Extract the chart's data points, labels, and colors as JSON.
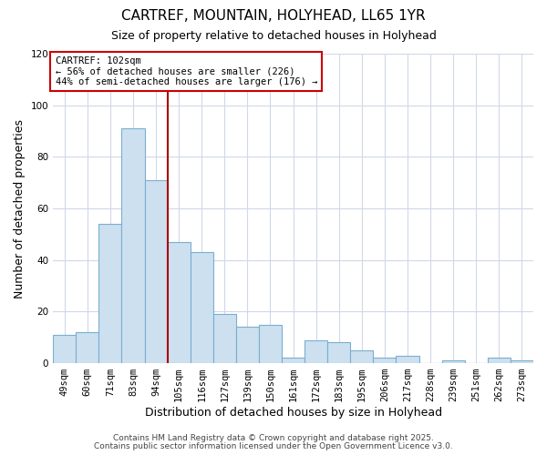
{
  "title": "CARTREF, MOUNTAIN, HOLYHEAD, LL65 1YR",
  "subtitle": "Size of property relative to detached houses in Holyhead",
  "xlabel": "Distribution of detached houses by size in Holyhead",
  "ylabel": "Number of detached properties",
  "bar_color": "#cce0f0",
  "bar_edge_color": "#7aaed0",
  "categories": [
    "49sqm",
    "60sqm",
    "71sqm",
    "83sqm",
    "94sqm",
    "105sqm",
    "116sqm",
    "127sqm",
    "139sqm",
    "150sqm",
    "161sqm",
    "172sqm",
    "183sqm",
    "195sqm",
    "206sqm",
    "217sqm",
    "228sqm",
    "239sqm",
    "251sqm",
    "262sqm",
    "273sqm"
  ],
  "values": [
    11,
    12,
    54,
    91,
    71,
    47,
    43,
    19,
    14,
    15,
    2,
    9,
    8,
    5,
    2,
    3,
    0,
    1,
    0,
    2,
    1
  ],
  "ylim": [
    0,
    120
  ],
  "yticks": [
    0,
    20,
    40,
    60,
    80,
    100,
    120
  ],
  "vline_x": 4.5,
  "vline_color": "#aa0000",
  "annotation_title": "CARTREF: 102sqm",
  "annotation_line1": "← 56% of detached houses are smaller (226)",
  "annotation_line2": "44% of semi-detached houses are larger (176) →",
  "annotation_box_color": "#ffffff",
  "annotation_box_edge": "#cc0000",
  "footnote1": "Contains HM Land Registry data © Crown copyright and database right 2025.",
  "footnote2": "Contains public sector information licensed under the Open Government Licence v3.0.",
  "background_color": "#ffffff",
  "grid_color": "#d0d8e8",
  "title_fontsize": 11,
  "subtitle_fontsize": 9,
  "axis_label_fontsize": 9,
  "tick_fontsize": 7.5,
  "footnote_fontsize": 6.5
}
